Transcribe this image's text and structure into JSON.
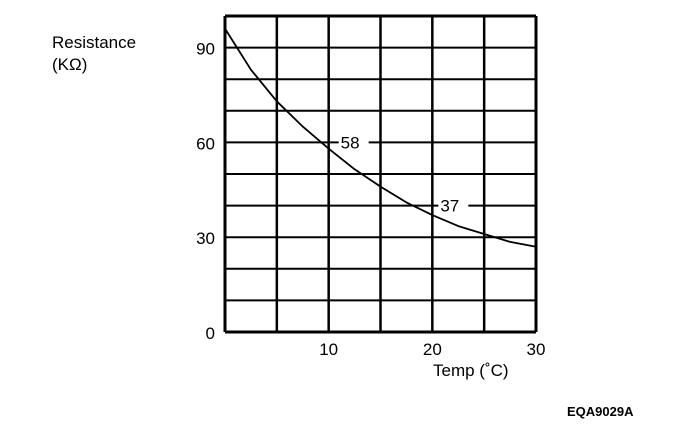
{
  "chart_data": {
    "type": "line",
    "ylabel_line1": "Resistance",
    "ylabel_line2": "(KΩ)",
    "xlabel": "Temp (˚C)",
    "xlim": [
      0,
      30
    ],
    "ylim": [
      0,
      100
    ],
    "grid": true,
    "x_grid_step": 5,
    "y_grid_step": 10,
    "x_ticks": [
      10,
      20,
      30
    ],
    "x_tick_labels": [
      "10",
      "20",
      "30"
    ],
    "y_ticks": [
      0,
      30,
      60,
      90
    ],
    "y_tick_labels": [
      "0",
      "30",
      "60",
      "90"
    ],
    "series": [
      {
        "name": "Resistance",
        "x": [
          0,
          2.5,
          5,
          7.5,
          10,
          12.5,
          15,
          17.5,
          20,
          22.5,
          25,
          27.5,
          30
        ],
        "y": [
          96,
          83,
          73,
          65,
          58,
          51.5,
          46,
          41,
          37,
          33.5,
          31,
          28.5,
          27
        ]
      }
    ],
    "annotations": [
      {
        "text": "58",
        "x": 10,
        "y": 58
      },
      {
        "text": "37",
        "x": 20,
        "y": 37
      }
    ]
  },
  "figure_code": "EQA9029A"
}
